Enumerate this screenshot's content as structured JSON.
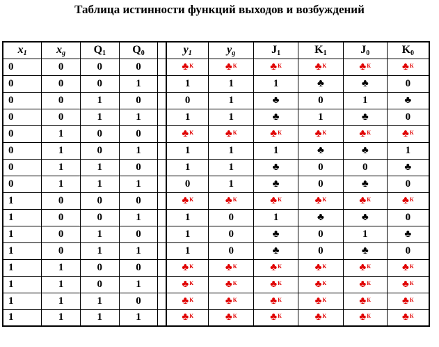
{
  "title": "Таблица истинности функций выходов и возбуждений",
  "headers": [
    {
      "main": "x",
      "sub": "1",
      "italic": true
    },
    {
      "main": "x",
      "sub": "g",
      "italic": true
    },
    {
      "main": "Q",
      "sub": "1",
      "italic": false
    },
    {
      "main": "Q",
      "sub": "0",
      "italic": false
    },
    {
      "main": "y",
      "sub": "1",
      "italic": true
    },
    {
      "main": "y",
      "sub": "g",
      "italic": true
    },
    {
      "main": "J",
      "sub": "1",
      "italic": false
    },
    {
      "main": "K",
      "sub": "1",
      "italic": false
    },
    {
      "main": "J",
      "sub": "0",
      "italic": false
    },
    {
      "main": "K",
      "sub": "0",
      "italic": false
    }
  ],
  "legend": {
    "dc": "don't care (black club)",
    "dcr": "red club with K mark",
    "club_glyph": "♣",
    "red_mark": "К",
    "red_color": "#e00000"
  },
  "rows": [
    [
      "0",
      "0",
      "0",
      "0",
      "dcr",
      "dcr",
      "dcr",
      "dcr",
      "dcr",
      "dcr"
    ],
    [
      "0",
      "0",
      "0",
      "1",
      "1",
      "1",
      "1",
      "dc",
      "dc",
      "0"
    ],
    [
      "0",
      "0",
      "1",
      "0",
      "0",
      "1",
      "dc",
      "0",
      "1",
      "dc"
    ],
    [
      "0",
      "0",
      "1",
      "1",
      "1",
      "1",
      "dc",
      "1",
      "dc",
      "0"
    ],
    [
      "0",
      "1",
      "0",
      "0",
      "dcr",
      "dcr",
      "dcr",
      "dcr",
      "dcr",
      "dcr"
    ],
    [
      "0",
      "1",
      "0",
      "1",
      "1",
      "1",
      "1",
      "dc",
      "dc",
      "1"
    ],
    [
      "0",
      "1",
      "1",
      "0",
      "1",
      "1",
      "dc",
      "0",
      "0",
      "dc"
    ],
    [
      "0",
      "1",
      "1",
      "1",
      "0",
      "1",
      "dc",
      "0",
      "dc",
      "0"
    ],
    [
      "1",
      "0",
      "0",
      "0",
      "dcr",
      "dcr",
      "dcr",
      "dcr",
      "dcr",
      "dcr"
    ],
    [
      "1",
      "0",
      "0",
      "1",
      "1",
      "0",
      "1",
      "dc",
      "dc",
      "0"
    ],
    [
      "1",
      "0",
      "1",
      "0",
      "1",
      "0",
      "dc",
      "0",
      "1",
      "dc"
    ],
    [
      "1",
      "0",
      "1",
      "1",
      "1",
      "0",
      "dc",
      "0",
      "dc",
      "0"
    ],
    [
      "1",
      "1",
      "0",
      "0",
      "dcr",
      "dcr",
      "dcr",
      "dcr",
      "dcr",
      "dcr"
    ],
    [
      "1",
      "1",
      "0",
      "1",
      "dcr",
      "dcr",
      "dcr",
      "dcr",
      "dcr",
      "dcr"
    ],
    [
      "1",
      "1",
      "1",
      "0",
      "dcr",
      "dcr",
      "dcr",
      "dcr",
      "dcr",
      "dcr"
    ],
    [
      "1",
      "1",
      "1",
      "1",
      "dcr",
      "dcr",
      "dcr",
      "dcr",
      "dcr",
      "dcr"
    ]
  ]
}
